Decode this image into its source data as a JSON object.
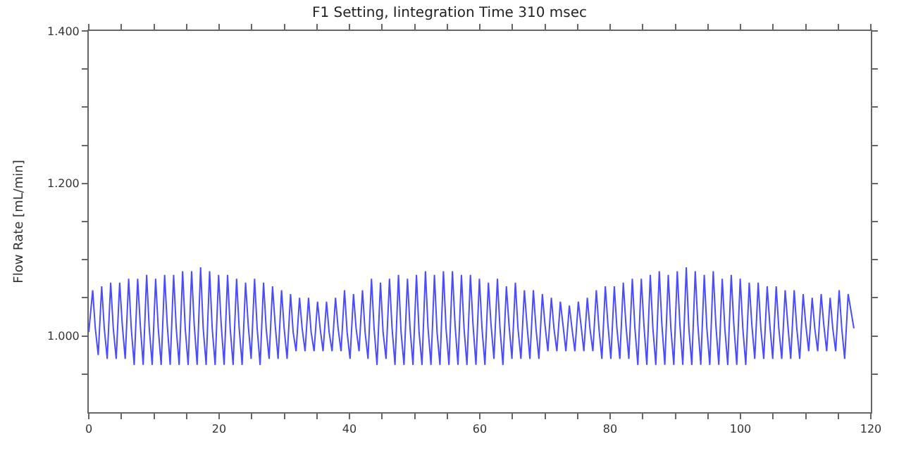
{
  "chart_data": {
    "type": "line",
    "title": "F1 Setting, Iintegration Time 310 msec",
    "ylabel": "Flow Rate [mL/min]",
    "xlim": [
      0,
      120
    ],
    "ylim": [
      0.9,
      1.4
    ],
    "xticks": [
      0,
      {
        "value": 5,
        "label": null
      },
      {
        "value": 10,
        "label": null
      },
      {
        "value": 15,
        "label": null
      },
      20,
      {
        "value": 25,
        "label": null
      },
      {
        "value": 30,
        "label": null
      },
      {
        "value": 35,
        "label": null
      },
      40,
      {
        "value": 45,
        "label": null
      },
      {
        "value": 50,
        "label": null
      },
      {
        "value": 55,
        "label": null
      },
      60,
      {
        "value": 65,
        "label": null
      },
      {
        "value": 70,
        "label": null
      },
      {
        "value": 75,
        "label": null
      },
      80,
      {
        "value": 85,
        "label": null
      },
      {
        "value": 90,
        "label": null
      },
      {
        "value": 95,
        "label": null
      },
      100,
      {
        "value": 105,
        "label": null
      },
      {
        "value": 110,
        "label": null
      },
      {
        "value": 115,
        "label": null
      },
      120
    ],
    "yticks": [
      {
        "value": 0.95,
        "label": null
      },
      {
        "value": 1.0,
        "label": "1.000"
      },
      {
        "value": 1.05,
        "label": null
      },
      {
        "value": 1.1,
        "label": null
      },
      {
        "value": 1.15,
        "label": null
      },
      {
        "value": 1.2,
        "label": "1.200"
      },
      {
        "value": 1.25,
        "label": null
      },
      {
        "value": 1.3,
        "label": null
      },
      {
        "value": 1.35,
        "label": null
      },
      {
        "value": 1.4,
        "label": "1.400"
      }
    ],
    "legend": false,
    "marker": "none",
    "line_style": "solid",
    "series": [
      {
        "color": "#4b4bff",
        "x": [
          0,
          0.6,
          1.0,
          1.45,
          1.98,
          2.38,
          2.83,
          3.36,
          3.76,
          4.21,
          4.74,
          5.14,
          5.59,
          6.12,
          6.52,
          6.97,
          7.5,
          7.9,
          8.35,
          8.88,
          9.28,
          9.73,
          10.26,
          10.66,
          11.11,
          11.64,
          12.04,
          12.49,
          13.02,
          13.42,
          13.87,
          14.4,
          14.8,
          15.25,
          15.78,
          16.18,
          16.63,
          17.16,
          17.56,
          18.01,
          18.54,
          18.94,
          19.39,
          19.92,
          20.32,
          20.77,
          21.3,
          21.7,
          22.15,
          22.68,
          23.08,
          23.53,
          24.06,
          24.46,
          24.91,
          25.44,
          25.84,
          26.29,
          26.82,
          27.22,
          27.67,
          28.2,
          28.6,
          29.05,
          29.58,
          29.98,
          30.43,
          30.96,
          31.36,
          31.81,
          32.34,
          32.74,
          33.19,
          33.72,
          34.12,
          34.57,
          35.1,
          35.5,
          35.95,
          36.48,
          36.88,
          37.33,
          37.86,
          38.26,
          38.71,
          39.24,
          39.64,
          40.09,
          40.62,
          41.02,
          41.47,
          42.0,
          42.4,
          42.85,
          43.38,
          43.78,
          44.23,
          44.76,
          45.16,
          45.61,
          46.14,
          46.54,
          46.99,
          47.52,
          47.92,
          48.37,
          48.9,
          49.3,
          49.75,
          50.28,
          50.68,
          51.13,
          51.66,
          52.06,
          52.51,
          53.04,
          53.44,
          53.89,
          54.42,
          54.82,
          55.27,
          55.8,
          56.2,
          56.65,
          57.18,
          57.58,
          58.03,
          58.56,
          58.96,
          59.41,
          59.94,
          60.34,
          60.79,
          61.32,
          61.72,
          62.17,
          62.7,
          63.1,
          63.55,
          64.08,
          64.48,
          64.93,
          65.46,
          65.86,
          66.31,
          66.84,
          67.24,
          67.69,
          68.22,
          68.62,
          69.07,
          69.6,
          70.0,
          70.45,
          70.98,
          71.38,
          71.83,
          72.36,
          72.76,
          73.21,
          73.74,
          74.14,
          74.59,
          75.12,
          75.52,
          75.97,
          76.5,
          76.9,
          77.35,
          77.88,
          78.28,
          78.73,
          79.26,
          79.66,
          80.11,
          80.64,
          81.04,
          81.49,
          82.02,
          82.42,
          82.87,
          83.4,
          83.8,
          84.25,
          84.78,
          85.18,
          85.63,
          86.16,
          86.56,
          87.01,
          87.54,
          87.94,
          88.39,
          88.92,
          89.32,
          89.77,
          90.3,
          90.7,
          91.15,
          91.68,
          92.08,
          92.53,
          93.06,
          93.46,
          93.91,
          94.44,
          94.84,
          95.29,
          95.82,
          96.22,
          96.67,
          97.2,
          97.6,
          98.05,
          98.58,
          98.98,
          99.43,
          99.96,
          100.36,
          100.81,
          101.34,
          101.74,
          102.19,
          102.72,
          103.12,
          103.57,
          104.1,
          104.5,
          104.95,
          105.48,
          105.88,
          106.33,
          106.86,
          107.26,
          107.71,
          108.24,
          108.64,
          109.09,
          109.62,
          110.02,
          110.47,
          111.0,
          111.4,
          111.85,
          112.38,
          112.78,
          113.23,
          113.76,
          114.16,
          114.61,
          115.14,
          115.54,
          115.99,
          116.52,
          117.4
        ],
        "values": [
          1.005,
          1.06,
          1.01,
          0.975,
          1.065,
          1.01,
          0.97,
          1.07,
          1.01,
          0.97,
          1.07,
          1.015,
          0.97,
          1.075,
          1.01,
          0.962,
          1.075,
          1.015,
          0.962,
          1.08,
          1.01,
          0.962,
          1.075,
          1.01,
          0.962,
          1.08,
          1.015,
          0.962,
          1.08,
          1.01,
          0.962,
          1.085,
          1.01,
          0.962,
          1.085,
          1.015,
          0.962,
          1.09,
          1.01,
          0.962,
          1.085,
          1.01,
          0.962,
          1.08,
          1.015,
          0.962,
          1.08,
          1.01,
          0.962,
          1.075,
          1.01,
          0.962,
          1.07,
          1.015,
          0.97,
          1.075,
          1.01,
          0.962,
          1.07,
          1.01,
          0.97,
          1.065,
          1.015,
          0.97,
          1.06,
          1.01,
          0.97,
          1.055,
          1.005,
          0.98,
          1.05,
          1.01,
          0.98,
          1.05,
          1.005,
          0.98,
          1.045,
          1.01,
          0.98,
          1.045,
          1.005,
          0.98,
          1.05,
          1.01,
          0.98,
          1.06,
          1.005,
          0.97,
          1.055,
          1.01,
          0.98,
          1.06,
          1.005,
          0.97,
          1.075,
          1.01,
          0.962,
          1.07,
          1.005,
          0.97,
          1.075,
          1.01,
          0.962,
          1.08,
          1.005,
          0.962,
          1.075,
          1.01,
          0.962,
          1.08,
          1.005,
          0.962,
          1.085,
          1.01,
          0.962,
          1.08,
          1.005,
          0.962,
          1.085,
          1.01,
          0.962,
          1.085,
          1.015,
          0.962,
          1.08,
          1.01,
          0.962,
          1.08,
          1.015,
          0.962,
          1.075,
          1.01,
          0.962,
          1.07,
          1.015,
          0.97,
          1.075,
          1.01,
          0.962,
          1.065,
          1.015,
          0.97,
          1.07,
          1.01,
          0.97,
          1.06,
          1.015,
          0.97,
          1.06,
          1.01,
          0.97,
          1.055,
          1.015,
          0.98,
          1.05,
          1.01,
          0.98,
          1.045,
          1.015,
          0.98,
          1.04,
          1.01,
          0.98,
          1.045,
          1.015,
          0.98,
          1.05,
          1.01,
          0.98,
          1.06,
          1.01,
          0.97,
          1.065,
          1.015,
          0.97,
          1.065,
          1.01,
          0.97,
          1.07,
          1.015,
          0.97,
          1.075,
          1.01,
          0.962,
          1.075,
          1.015,
          0.962,
          1.08,
          1.01,
          0.962,
          1.085,
          1.015,
          0.962,
          1.08,
          1.01,
          0.962,
          1.085,
          1.015,
          0.962,
          1.09,
          1.01,
          0.962,
          1.085,
          1.015,
          0.962,
          1.08,
          1.01,
          0.962,
          1.085,
          1.015,
          0.962,
          1.075,
          1.01,
          0.962,
          1.08,
          1.015,
          0.962,
          1.075,
          1.01,
          0.962,
          1.07,
          1.015,
          0.97,
          1.07,
          1.01,
          0.97,
          1.065,
          1.015,
          0.97,
          1.065,
          1.01,
          0.97,
          1.06,
          1.015,
          0.97,
          1.06,
          1.01,
          0.97,
          1.055,
          1.015,
          0.98,
          1.05,
          1.01,
          0.98,
          1.055,
          1.015,
          0.98,
          1.05,
          1.01,
          0.98,
          1.06,
          1.01,
          0.97,
          1.055,
          1.01
        ]
      }
    ]
  }
}
